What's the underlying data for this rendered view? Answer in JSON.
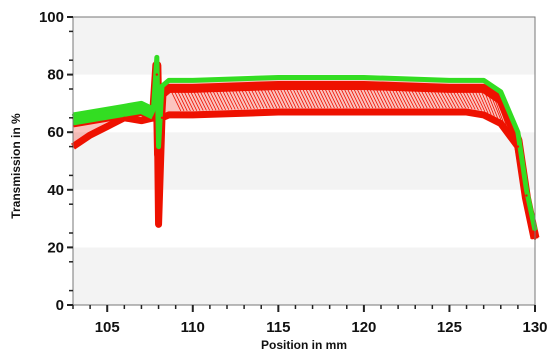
{
  "chart_data": {
    "type": "line",
    "xlabel": "Position in mm",
    "ylabel": "Transmission in %",
    "xlim": [
      103,
      130
    ],
    "ylim": [
      0,
      100
    ],
    "x_ticks": [
      105,
      110,
      115,
      120,
      125,
      130
    ],
    "y_ticks": [
      0,
      20,
      40,
      60,
      80,
      100
    ],
    "grid": "horizontal bands",
    "colors": {
      "upper": "#33dd22",
      "lower": "#ee1100",
      "band": "#f3f3f3"
    },
    "series": [
      {
        "color": "#33dd22",
        "x": [
          103,
          104,
          105,
          106,
          107,
          107.7,
          107.9,
          108.0,
          108.2,
          108.6,
          110,
          115,
          120,
          125,
          126,
          127,
          128,
          129,
          129.5,
          130
        ],
        "y": [
          66,
          67,
          68,
          69,
          70,
          68,
          86,
          55,
          76,
          78,
          78,
          79,
          79,
          78,
          78,
          78,
          74,
          60,
          40,
          26
        ]
      },
      {
        "color": "#ee1100",
        "x": [
          103,
          104,
          105,
          106,
          107,
          107.7,
          107.9,
          108.0,
          108.2,
          108.6,
          110,
          115,
          120,
          125,
          126,
          127,
          128,
          129,
          129.5,
          130
        ],
        "y": [
          55,
          59,
          62,
          65,
          64,
          65,
          80,
          28,
          65,
          66,
          66,
          67,
          67,
          67,
          67,
          66,
          63,
          55,
          38,
          23
        ]
      }
    ]
  }
}
